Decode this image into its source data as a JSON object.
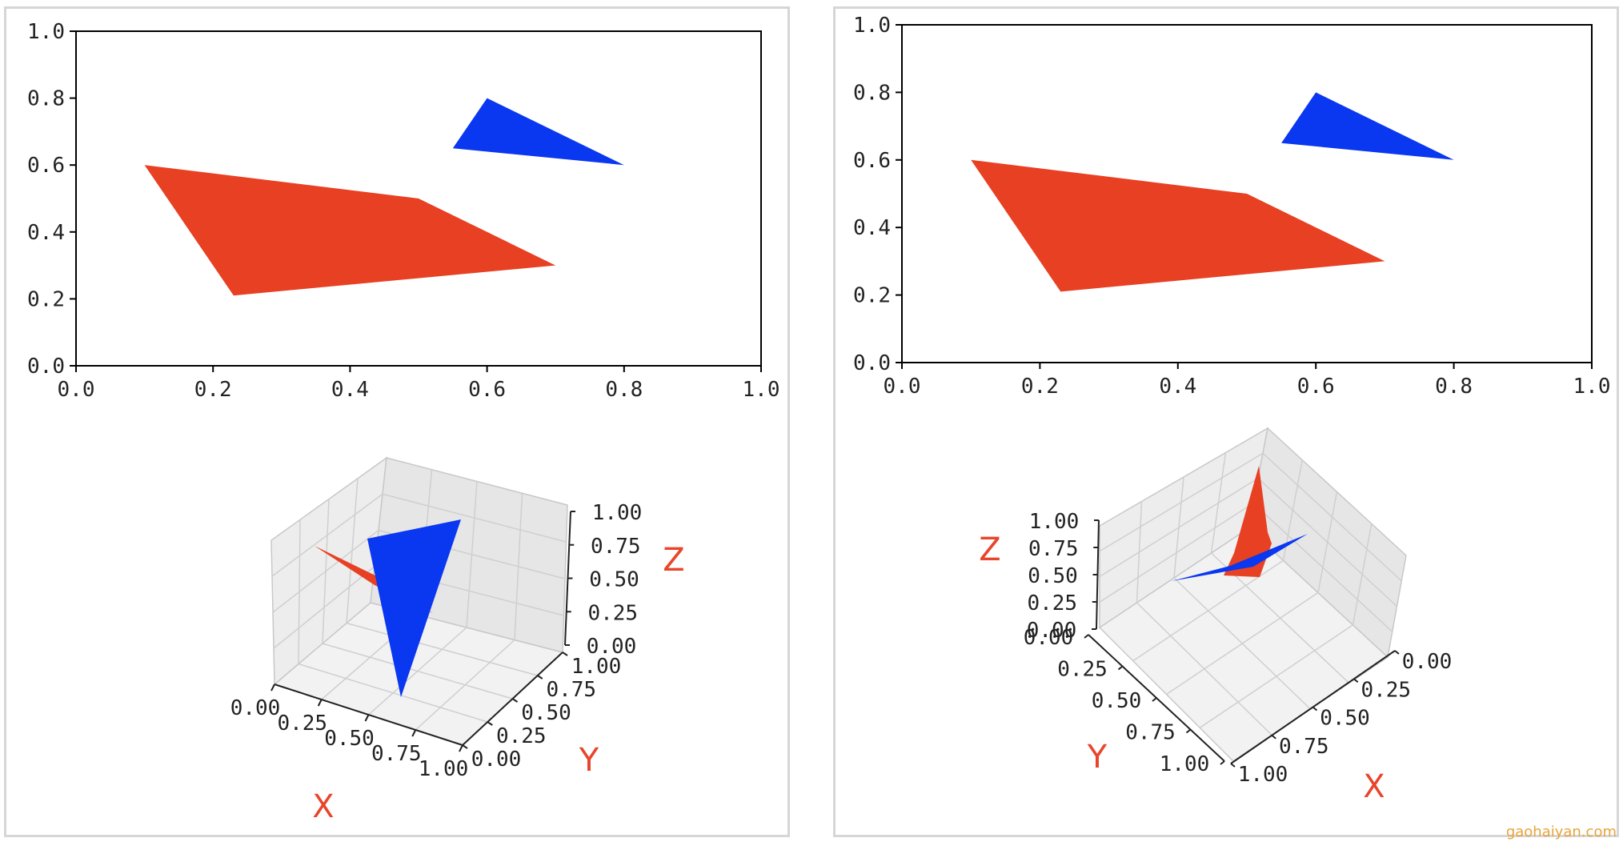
{
  "colors": {
    "red": "#e84023",
    "blue": "#0a37f0",
    "axis_label": "#e8452b"
  },
  "chart_data": [
    {
      "type": "area",
      "kind": "2d-polygons",
      "xlim": [
        0,
        1
      ],
      "ylim": [
        0,
        1
      ],
      "x_ticks": [
        "0.0",
        "0.2",
        "0.4",
        "0.6",
        "0.8",
        "1.0"
      ],
      "y_ticks": [
        "0.0",
        "0.2",
        "0.4",
        "0.6",
        "0.8",
        "1.0"
      ],
      "polygons": [
        {
          "color": "red",
          "points": [
            [
              0.1,
              0.6
            ],
            [
              0.5,
              0.5
            ],
            [
              0.7,
              0.3
            ],
            [
              0.23,
              0.21
            ]
          ]
        },
        {
          "color": "blue",
          "points": [
            [
              0.55,
              0.65
            ],
            [
              0.6,
              0.8
            ],
            [
              0.8,
              0.6
            ]
          ]
        }
      ]
    },
    {
      "type": "area",
      "kind": "3d-polygons",
      "view": "azim -60, elev 30",
      "x_ticks": [
        "0.00",
        "0.25",
        "0.50",
        "0.75",
        "1.00"
      ],
      "y_ticks": [
        "0.00",
        "0.25",
        "0.50",
        "0.75",
        "1.00"
      ],
      "z_ticks": [
        "0.00",
        "0.25",
        "0.50",
        "0.75",
        "1.00"
      ],
      "xlabel": "X",
      "ylabel": "Y",
      "zlabel": "Z"
    },
    {
      "type": "area",
      "kind": "2d-polygons",
      "xlim": [
        0,
        1
      ],
      "ylim": [
        0,
        1
      ],
      "x_ticks": [
        "0.0",
        "0.2",
        "0.4",
        "0.6",
        "0.8",
        "1.0"
      ],
      "y_ticks": [
        "0.0",
        "0.2",
        "0.4",
        "0.6",
        "0.8",
        "1.0"
      ],
      "polygons": [
        {
          "color": "red",
          "points": [
            [
              0.1,
              0.6
            ],
            [
              0.5,
              0.5
            ],
            [
              0.7,
              0.3
            ],
            [
              0.23,
              0.21
            ]
          ]
        },
        {
          "color": "blue",
          "points": [
            [
              0.55,
              0.65
            ],
            [
              0.6,
              0.8
            ],
            [
              0.8,
              0.6
            ]
          ]
        }
      ]
    },
    {
      "type": "area",
      "kind": "3d-polygons",
      "view": "azim 45, elev 45",
      "x_ticks": [
        "0.00",
        "0.25",
        "0.50",
        "0.75",
        "1.00"
      ],
      "y_ticks": [
        "0.00",
        "0.25",
        "0.50",
        "0.75",
        "1.00"
      ],
      "z_ticks": [
        "1.00",
        "0.75",
        "0.50",
        "0.25",
        "0.00"
      ],
      "xlabel": "X",
      "ylabel": "Y",
      "zlabel": "Z"
    }
  ],
  "watermark": "gaohaiyan.com"
}
